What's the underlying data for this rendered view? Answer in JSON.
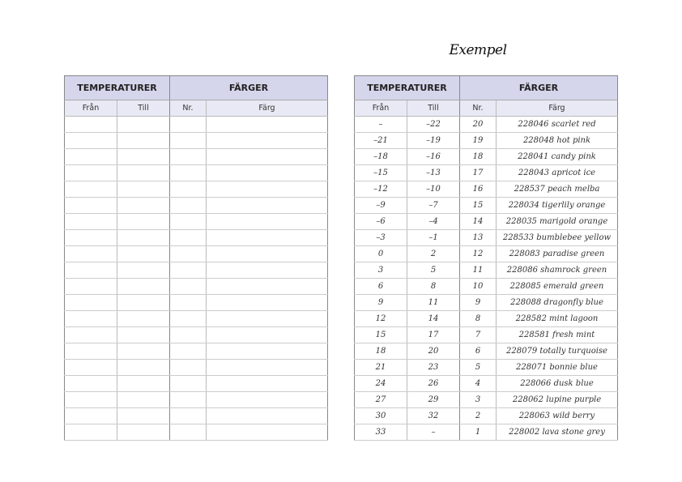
{
  "example_title": "Exempel",
  "headers": {
    "temperatures": "TEMPERATURER",
    "colors": "FÄRGER",
    "from": "Från",
    "to": "Till",
    "nr": "Nr.",
    "color": "Färg"
  },
  "blank_table": {
    "row_count": 20
  },
  "example_rows": [
    {
      "from": "–",
      "to": "–22",
      "nr": "20",
      "color": "228046 scarlet red"
    },
    {
      "from": "–21",
      "to": "–19",
      "nr": "19",
      "color": "228048 hot pink"
    },
    {
      "from": "–18",
      "to": "–16",
      "nr": "18",
      "color": "228041 candy pink"
    },
    {
      "from": "–15",
      "to": "–13",
      "nr": "17",
      "color": "228043 apricot ice"
    },
    {
      "from": "–12",
      "to": "–10",
      "nr": "16",
      "color": "228537 peach melba"
    },
    {
      "from": "–9",
      "to": "–7",
      "nr": "15",
      "color": "228034 tigerlily orange"
    },
    {
      "from": "–6",
      "to": "–4",
      "nr": "14",
      "color": "228035 marigold orange"
    },
    {
      "from": "–3",
      "to": "–1",
      "nr": "13",
      "color": "228533 bumblebee yellow"
    },
    {
      "from": "0",
      "to": "2",
      "nr": "12",
      "color": "228083 paradise green"
    },
    {
      "from": "3",
      "to": "5",
      "nr": "11",
      "color": "228086 shamrock green"
    },
    {
      "from": "6",
      "to": "8",
      "nr": "10",
      "color": "228085 emerald green"
    },
    {
      "from": "9",
      "to": "11",
      "nr": "9",
      "color": "228088 dragonfly blue"
    },
    {
      "from": "12",
      "to": "14",
      "nr": "8",
      "color": "228582 mint lagoon"
    },
    {
      "from": "15",
      "to": "17",
      "nr": "7",
      "color": "228581 fresh mint"
    },
    {
      "from": "18",
      "to": "20",
      "nr": "6",
      "color": "228079 totally turquoise"
    },
    {
      "from": "21",
      "to": "23",
      "nr": "5",
      "color": "228071 bonnie blue"
    },
    {
      "from": "24",
      "to": "26",
      "nr": "4",
      "color": "228066 dusk blue"
    },
    {
      "from": "27",
      "to": "29",
      "nr": "3",
      "color": "228062 lupine purple"
    },
    {
      "from": "30",
      "to": "32",
      "nr": "2",
      "color": "228063 wild berry"
    },
    {
      "from": "33",
      "to": "–",
      "nr": "1",
      "color": "228002 lava stone grey"
    }
  ],
  "colors": {
    "header": "#d5d5ec",
    "subheader": "#e9e9f5",
    "border": "#888888"
  }
}
